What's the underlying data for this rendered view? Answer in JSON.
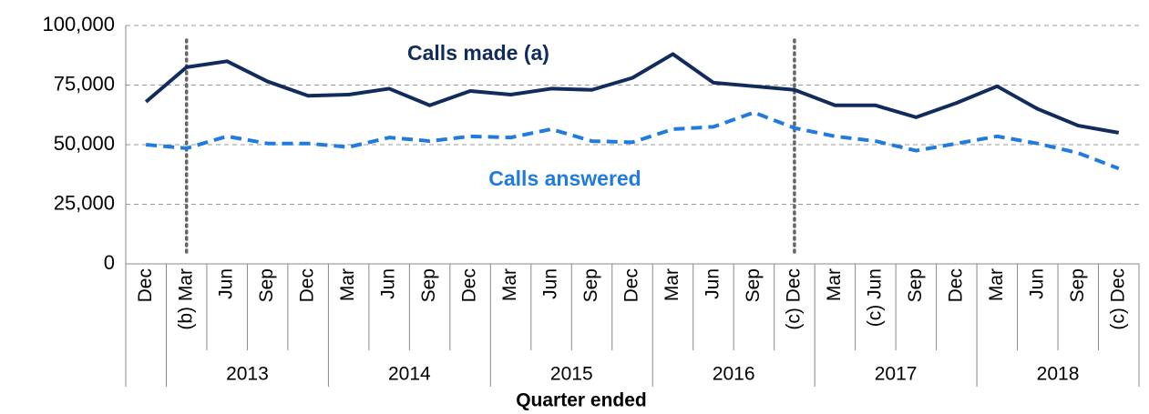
{
  "chart_data": {
    "type": "line",
    "x_label": "Quarter ended",
    "categories": [
      "Dec",
      "(b) Mar",
      "Jun",
      "Sep",
      "Dec",
      "Mar",
      "Jun",
      "Sep",
      "Dec",
      "Mar",
      "Jun",
      "Sep",
      "Dec",
      "Mar",
      "Jun",
      "Sep",
      "(c) Dec",
      "Mar",
      "(c) Jun",
      "Sep",
      "Dec",
      "Mar",
      "Jun",
      "Sep",
      "(c) Dec"
    ],
    "groups": [
      {
        "label": null,
        "size": 1
      },
      {
        "label": "2013",
        "size": 4
      },
      {
        "label": "2014",
        "size": 4
      },
      {
        "label": "2015",
        "size": 4
      },
      {
        "label": "2016",
        "size": 4
      },
      {
        "label": "2017",
        "size": 4
      },
      {
        "label": "2018",
        "size": 4
      }
    ],
    "series": [
      {
        "name": "Calls made (a)",
        "color": "#112c5c",
        "dashed": false,
        "values": [
          68000,
          82500,
          85000,
          76500,
          70500,
          71000,
          73500,
          66500,
          72500,
          71000,
          73500,
          73000,
          78000,
          88000,
          76000,
          74500,
          73000,
          66500,
          66500,
          61500,
          67500,
          74500,
          65000,
          58000,
          55000
        ]
      },
      {
        "name": "Calls answered",
        "color": "#1f7be0",
        "dashed": true,
        "values": [
          50000,
          48500,
          53500,
          50500,
          50500,
          49000,
          53000,
          51500,
          53500,
          53000,
          56500,
          51500,
          51000,
          56500,
          57500,
          63500,
          57000,
          53500,
          51500,
          47500,
          50500,
          53500,
          50500,
          46500,
          40000
        ]
      }
    ],
    "vlines": [
      1,
      16
    ],
    "ylim": [
      0,
      100000
    ],
    "yticks": [
      0,
      {
        "value": 25000,
        "label": "25,000"
      },
      {
        "value": 50000,
        "label": "50,000"
      },
      {
        "value": 75000,
        "label": "75,000"
      },
      {
        "value": 100000,
        "label": "100,000"
      }
    ],
    "grid": true
  }
}
